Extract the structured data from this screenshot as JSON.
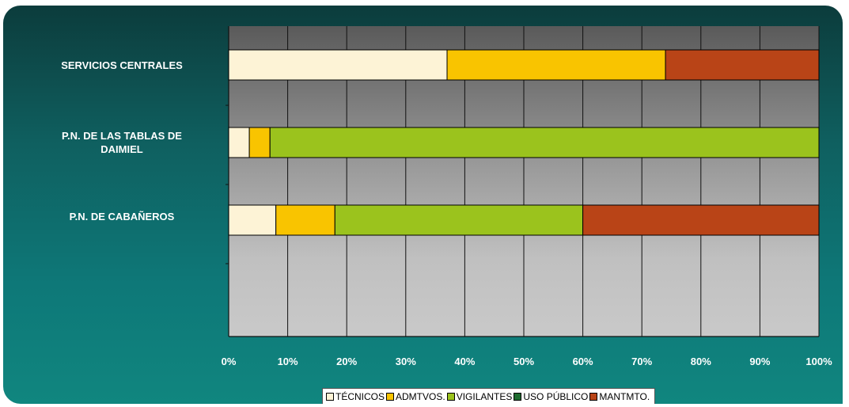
{
  "chart_data": {
    "type": "bar",
    "orientation": "horizontal",
    "stacked": "percent",
    "categories": [
      "SERVICIOS CENTRALES",
      "P.N. DE LAS TABLAS DE DAIMIEL",
      "P.N. DE CABAÑEROS"
    ],
    "category_labels": [
      [
        "SERVICIOS CENTRALES"
      ],
      [
        "P.N. DE LAS TABLAS DE",
        "DAIMIEL"
      ],
      [
        "P.N. DE CABAÑEROS"
      ]
    ],
    "series": [
      {
        "name": "TÉCNICOS",
        "color": "#fdf3d6",
        "values": [
          37,
          3.5,
          8
        ]
      },
      {
        "name": "ADMTVOS.",
        "color": "#f9c400",
        "values": [
          37,
          3.5,
          10
        ]
      },
      {
        "name": "VIGILANTES",
        "color": "#9bc31d",
        "values": [
          0,
          93,
          42
        ]
      },
      {
        "name": "USO PÚBLICO",
        "color": "#1e6b2f",
        "values": [
          0,
          0,
          0
        ]
      },
      {
        "name": "MANTMTO.",
        "color": "#b94417",
        "values": [
          26,
          0,
          40
        ]
      }
    ],
    "xticks": [
      "0%",
      "10%",
      "20%",
      "30%",
      "40%",
      "50%",
      "60%",
      "70%",
      "80%",
      "90%",
      "100%"
    ],
    "xlim": [
      0,
      100
    ],
    "grid": true,
    "legend_position": "bottom"
  }
}
